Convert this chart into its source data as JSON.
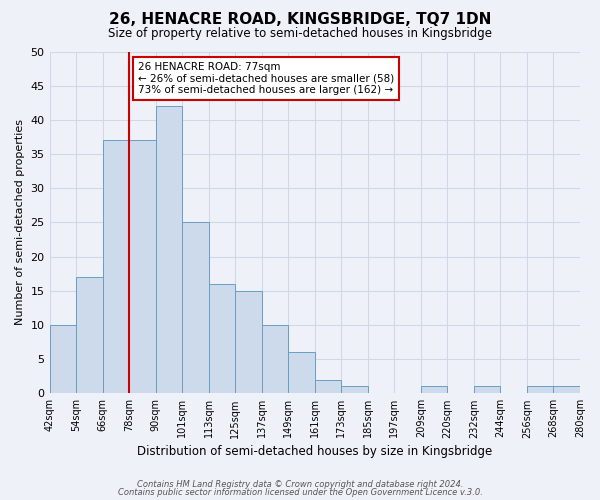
{
  "title": "26, HENACRE ROAD, KINGSBRIDGE, TQ7 1DN",
  "subtitle": "Size of property relative to semi-detached houses in Kingsbridge",
  "xlabel": "Distribution of semi-detached houses by size in Kingsbridge",
  "ylabel": "Number of semi-detached properties",
  "bin_edges": [
    42,
    54,
    66,
    78,
    90,
    102,
    114,
    126,
    138,
    150,
    162,
    174,
    186,
    198,
    210,
    222,
    234,
    246,
    258,
    270,
    282
  ],
  "bin_labels": [
    "42sqm",
    "54sqm",
    "66sqm",
    "78sqm",
    "90sqm",
    "101sqm",
    "113sqm",
    "125sqm",
    "137sqm",
    "149sqm",
    "161sqm",
    "173sqm",
    "185sqm",
    "197sqm",
    "209sqm",
    "220sqm",
    "232sqm",
    "244sqm",
    "256sqm",
    "268sqm",
    "280sqm"
  ],
  "counts": [
    10,
    17,
    37,
    37,
    42,
    25,
    16,
    15,
    10,
    6,
    2,
    1,
    0,
    0,
    1,
    0,
    1,
    0,
    1,
    1
  ],
  "bar_facecolor": "#ccdaec",
  "bar_edgecolor": "#6a9ec5",
  "grid_color": "#d0d8e8",
  "background_color": "#eef2f8",
  "vline_color": "#cc0000",
  "vline_x": 78,
  "annotation_title": "26 HENACRE ROAD: 77sqm",
  "annotation_line1": "← 26% of semi-detached houses are smaller (58)",
  "annotation_line2": "73% of semi-detached houses are larger (162) →",
  "annotation_box_facecolor": "#ffffff",
  "annotation_box_edgecolor": "#cc0000",
  "footer_line1": "Contains HM Land Registry data © Crown copyright and database right 2024.",
  "footer_line2": "Contains public sector information licensed under the Open Government Licence v.3.0.",
  "ylim": [
    0,
    50
  ],
  "yticks": [
    0,
    5,
    10,
    15,
    20,
    25,
    30,
    35,
    40,
    45,
    50
  ]
}
